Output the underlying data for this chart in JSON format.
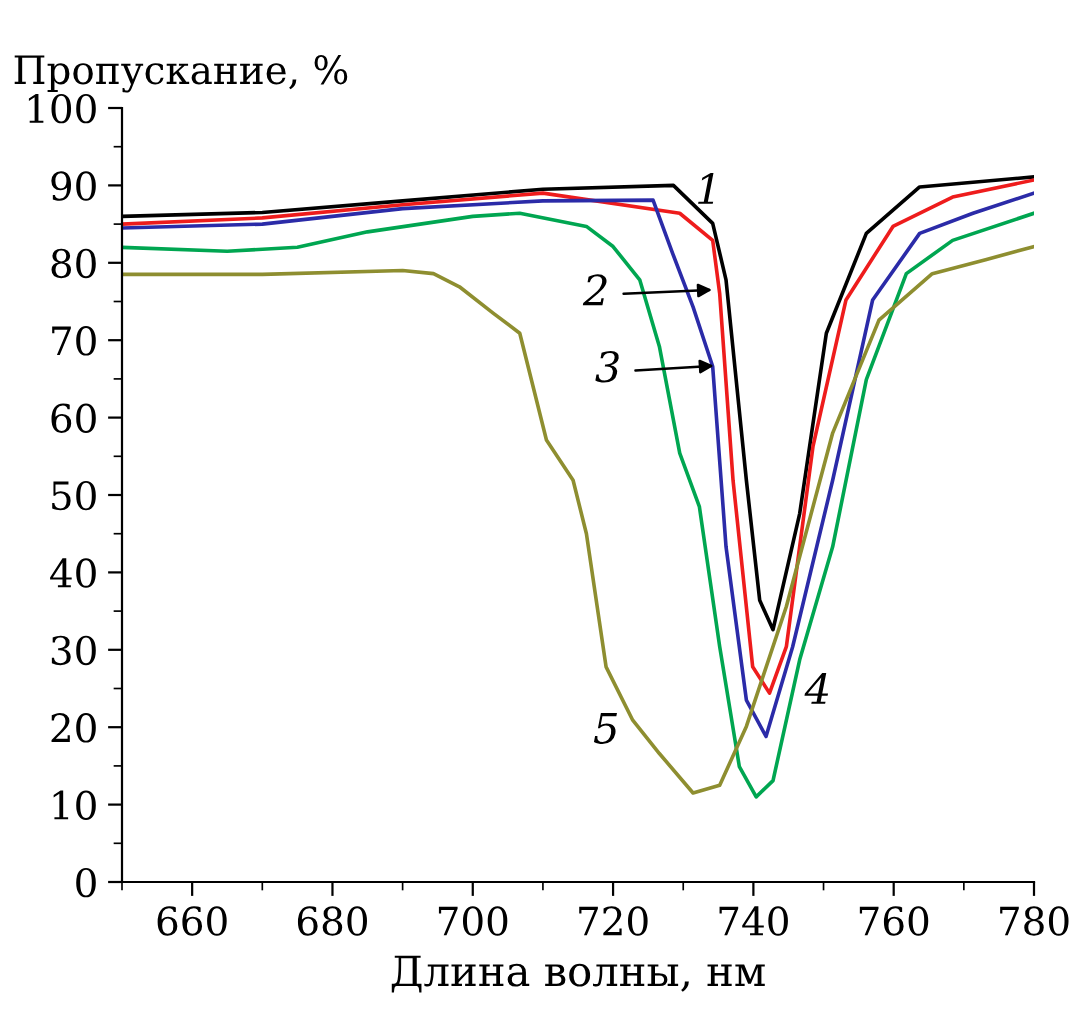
{
  "chart_data": {
    "type": "line",
    "xlabel": "Длина волны, нм",
    "ylabel": "Пропускание, %",
    "xlim": [
      650,
      780
    ],
    "xticks": [
      660,
      680,
      700,
      720,
      740,
      760,
      780
    ],
    "ylim": [
      0,
      100
    ],
    "yticks": [
      0,
      10,
      20,
      30,
      40,
      50,
      60,
      70,
      80,
      90,
      100
    ],
    "grid": false,
    "legend": false,
    "marker": "none",
    "line_style": "solid",
    "series": [
      {
        "color": "#000000",
        "x": [
          650,
          670,
          690,
          710,
          728.6,
          734.2,
          736.1,
          739.0,
          740.9,
          742.8,
          746.6,
          750.4,
          756.1,
          763.7,
          780
        ],
        "values": [
          86,
          86.5,
          88,
          89.5,
          90,
          85.1,
          77.8,
          51.9,
          36.4,
          32.6,
          47.6,
          70.9,
          83.8,
          89.8,
          91.1
        ]
      },
      {
        "color": "#ee1c1c",
        "x": [
          650,
          670,
          690,
          710,
          729.5,
          734.2,
          735.2,
          737.1,
          739.9,
          742.3,
          744.7,
          748.5,
          753.2,
          759.9,
          768.4,
          780
        ],
        "values": [
          85,
          85.8,
          87.5,
          89,
          86.4,
          82.9,
          76.0,
          51.9,
          27.8,
          24.4,
          30.4,
          56.3,
          75.2,
          84.7,
          88.5,
          90.7
        ]
      },
      {
        "color": "#2b2ba8",
        "x": [
          650,
          670,
          690,
          710,
          725.7,
          728.5,
          731.4,
          734.2,
          736.1,
          739.0,
          741.8,
          745.6,
          751.3,
          757.0,
          763.7,
          771.3,
          780
        ],
        "values": [
          84.5,
          85,
          87,
          88,
          88.1,
          81.2,
          74.3,
          66.6,
          43.3,
          23.5,
          18.8,
          30.4,
          51.9,
          75.2,
          83.8,
          86.4,
          89.0
        ]
      },
      {
        "color": "#00a651",
        "x": [
          650,
          665,
          675,
          685,
          700,
          706.7,
          716.2,
          720.0,
          723.8,
          726.6,
          729.5,
          732.3,
          735.2,
          738.0,
          740.4,
          742.8,
          746.6,
          751.3,
          756.1,
          761.8,
          768.4,
          780
        ],
        "values": [
          82,
          81.5,
          82,
          84,
          86,
          86.4,
          84.7,
          82.1,
          77.8,
          69.2,
          55.4,
          48.5,
          30.4,
          14.9,
          11.0,
          13.1,
          28.7,
          43.3,
          64.9,
          78.6,
          82.9,
          86.4
        ]
      },
      {
        "color": "#8e8e30",
        "x": [
          650,
          670,
          690,
          694.4,
          698.1,
          702.9,
          706.7,
          710.5,
          714.3,
          716.2,
          719.0,
          722.8,
          726.6,
          731.4,
          735.2,
          739.0,
          744.7,
          751.3,
          757.9,
          765.5,
          773.1,
          780
        ],
        "values": [
          78.5,
          78.5,
          79,
          78.6,
          76.9,
          73.5,
          70.9,
          57.1,
          51.9,
          45.0,
          27.8,
          20.9,
          16.6,
          11.5,
          12.5,
          20.1,
          35.6,
          58.0,
          72.6,
          78.6,
          80.4,
          82.1
        ]
      }
    ],
    "annotations": [
      "1",
      "2",
      "3",
      "4",
      "5"
    ]
  }
}
